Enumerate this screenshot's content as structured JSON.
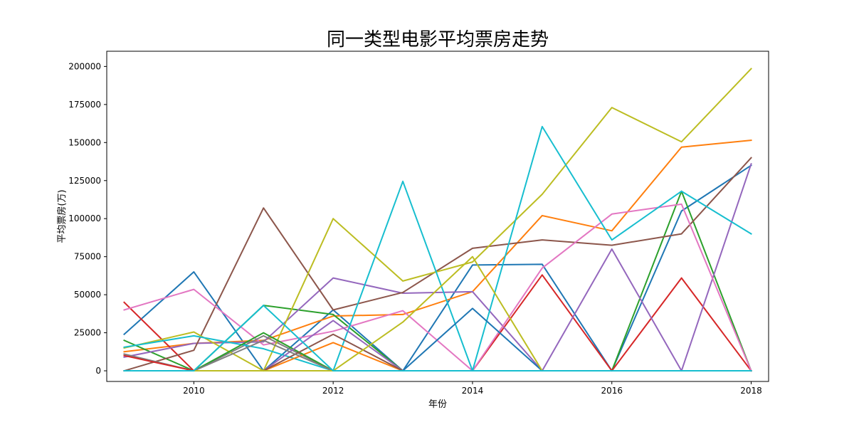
{
  "chart_data": {
    "type": "line",
    "title": "同一类型电影平均票房走势",
    "xlabel": "年份",
    "ylabel": "平均票房(万)",
    "xlim": [
      2008.75,
      2018.25
    ],
    "ylim": [
      -7000,
      210000
    ],
    "xticks": [
      2010,
      2012,
      2014,
      2016,
      2018
    ],
    "yticks": [
      0,
      25000,
      50000,
      75000,
      100000,
      125000,
      150000,
      175000,
      200000
    ],
    "xtick_labels": [
      "2010",
      "2012",
      "2014",
      "2016",
      "2018"
    ],
    "ytick_labels": [
      "0",
      "25000",
      "50000",
      "75000",
      "100000",
      "125000",
      "150000",
      "175000",
      "200000"
    ],
    "grid": false,
    "legend": "none",
    "x": [
      2009,
      2010,
      2011,
      2012,
      2013,
      2014,
      2015,
      2016,
      2017,
      2018
    ],
    "series": [
      {
        "color": "#1f77b4",
        "values": [
          24000,
          65000,
          0,
          40000,
          0,
          69500,
          70000,
          0,
          105000,
          135000
        ]
      },
      {
        "color": "#ff7f0e",
        "values": [
          12500,
          18000,
          20000,
          36000,
          37000,
          52000,
          102000,
          92000,
          147000,
          151500
        ]
      },
      {
        "color": "#2ca02c",
        "values": [
          20000,
          0,
          43000,
          37000,
          0,
          0,
          0,
          0,
          118000,
          0
        ]
      },
      {
        "color": "#d62728",
        "values": [
          45000,
          0,
          0,
          0,
          0,
          0,
          63000,
          0,
          61000,
          0
        ]
      },
      {
        "color": "#9467bd",
        "values": [
          9000,
          18000,
          19000,
          61000,
          51000,
          52000,
          0,
          80000,
          0,
          136000
        ]
      },
      {
        "color": "#8c564b",
        "values": [
          0,
          13500,
          107000,
          40000,
          51500,
          80500,
          86000,
          82500,
          90000,
          140000
        ]
      },
      {
        "color": "#e377c2",
        "values": [
          40000,
          53500,
          17000,
          26000,
          39500,
          0,
          67500,
          103000,
          109500,
          0
        ]
      },
      {
        "color": "#7f7f7f",
        "values": [
          11000,
          0,
          23000,
          0,
          0,
          0,
          0,
          0,
          0,
          0
        ]
      },
      {
        "color": "#bcbd22",
        "values": [
          15000,
          25500,
          0,
          100000,
          59000,
          71500,
          116000,
          173000,
          150500,
          198500
        ]
      },
      {
        "color": "#17becf",
        "values": [
          15500,
          23000,
          14500,
          0,
          124500,
          0,
          160500,
          86000,
          118000,
          90000
        ]
      },
      {
        "color": "#1f77b4",
        "values": [
          0,
          0,
          0,
          0,
          0,
          41000,
          0,
          0,
          0,
          0
        ]
      },
      {
        "color": "#ff7f0e",
        "values": [
          0,
          0,
          0,
          18500,
          0,
          0,
          0,
          0,
          0,
          0
        ]
      },
      {
        "color": "#2ca02c",
        "values": [
          0,
          0,
          25000,
          0,
          0,
          0,
          0,
          0,
          0,
          0
        ]
      },
      {
        "color": "#d62728",
        "values": [
          10000,
          0,
          0,
          0,
          0,
          0,
          0,
          0,
          0,
          0
        ]
      },
      {
        "color": "#9467bd",
        "values": [
          0,
          0,
          0,
          33000,
          0,
          0,
          0,
          0,
          0,
          0
        ]
      },
      {
        "color": "#8c564b",
        "values": [
          0,
          0,
          0,
          24000,
          0,
          0,
          0,
          0,
          0,
          0
        ]
      },
      {
        "color": "#e377c2",
        "values": [
          0,
          0,
          0,
          0,
          0,
          0,
          0,
          0,
          0,
          0
        ]
      },
      {
        "color": "#7f7f7f",
        "values": [
          0,
          0,
          20000,
          0,
          0,
          0,
          0,
          0,
          0,
          0
        ]
      },
      {
        "color": "#bcbd22",
        "values": [
          0,
          0,
          0,
          0,
          32000,
          75000,
          0,
          0,
          0,
          0
        ]
      },
      {
        "color": "#17becf",
        "values": [
          0,
          0,
          43000,
          0,
          0,
          0,
          0,
          0,
          0,
          0
        ]
      }
    ]
  }
}
